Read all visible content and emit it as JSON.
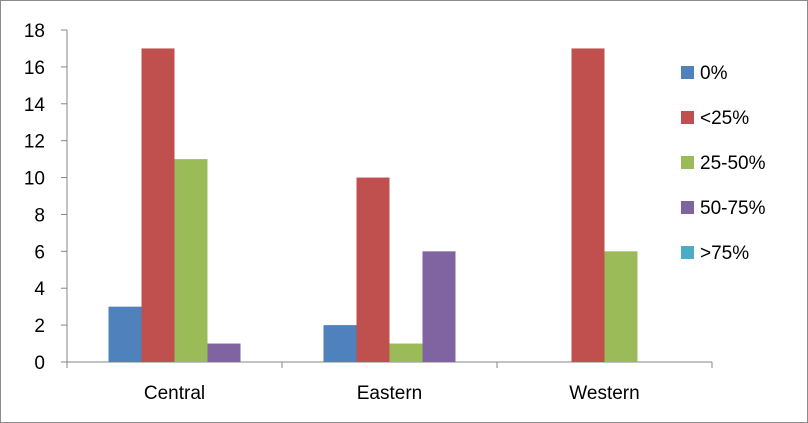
{
  "chart_data": {
    "type": "bar",
    "categories": [
      "Central",
      "Eastern",
      "Western"
    ],
    "series": [
      {
        "name": "0%",
        "values": [
          3,
          2,
          0
        ],
        "color": "#4f81bd"
      },
      {
        "name": "<25%",
        "values": [
          17,
          10,
          17
        ],
        "color": "#c0504d"
      },
      {
        "name": "25-50%",
        "values": [
          11,
          1,
          6
        ],
        "color": "#9bbb59"
      },
      {
        "name": "50-75%",
        "values": [
          1,
          6,
          0
        ],
        "color": "#8064a2"
      },
      {
        "name": ">75%",
        "values": [
          0,
          0,
          0
        ],
        "color": "#4bacc6"
      }
    ],
    "ylim": [
      0,
      18
    ],
    "yticks": [
      0,
      2,
      4,
      6,
      8,
      10,
      12,
      14,
      16,
      18
    ],
    "grid": false,
    "legend_position": "right"
  }
}
